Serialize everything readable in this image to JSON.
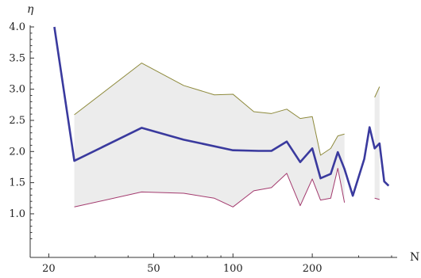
{
  "chart_data": {
    "type": "line",
    "xlabel": "N",
    "ylabel": "η",
    "x_scale": "log",
    "xlim": [
      17,
      420
    ],
    "ylim": [
      0.3,
      4.0
    ],
    "x_ticks": [
      20,
      50,
      100,
      200
    ],
    "x_tick_labels": [
      "20",
      "50",
      "100",
      "200"
    ],
    "y_ticks": [
      1.0,
      1.5,
      2.0,
      2.5,
      3.0,
      3.5,
      4.0
    ],
    "y_tick_labels": [
      "1.0",
      "1.5",
      "2.0",
      "2.5",
      "3.0",
      "3.5",
      "4.0"
    ],
    "grid": false,
    "legend": "none",
    "colors": {
      "mean": "#3a3a9e",
      "upper": "#8e8a3c",
      "lower": "#a33a6e",
      "band": "#ececec"
    },
    "series": [
      {
        "role": "mean",
        "x": [
          21,
          25,
          45,
          65,
          100,
          125,
          140,
          160,
          180,
          200,
          215,
          235,
          250,
          265,
          285,
          315,
          330,
          345,
          360,
          375,
          390
        ],
        "values": [
          4.0,
          1.85,
          2.38,
          2.19,
          2.02,
          2.01,
          2.01,
          2.16,
          1.83,
          2.05,
          1.57,
          1.64,
          1.99,
          1.72,
          1.29,
          1.88,
          2.39,
          2.05,
          2.13,
          1.52,
          1.45
        ]
      },
      {
        "role": "upper",
        "x": [
          25,
          45,
          65,
          85,
          100,
          120,
          140,
          160,
          180,
          200,
          215,
          235,
          250,
          265
        ],
        "values": [
          2.59,
          3.42,
          3.06,
          2.91,
          2.92,
          2.64,
          2.61,
          2.68,
          2.53,
          2.56,
          1.94,
          2.05,
          2.25,
          2.28
        ]
      },
      {
        "role": "lower",
        "x": [
          25,
          45,
          65,
          85,
          100,
          120,
          140,
          160,
          180,
          200,
          215,
          235,
          250,
          265
        ],
        "values": [
          1.11,
          1.35,
          1.33,
          1.25,
          1.11,
          1.37,
          1.42,
          1.65,
          1.13,
          1.56,
          1.22,
          1.25,
          1.73,
          1.18
        ]
      },
      {
        "role": "upper",
        "x": [
          345,
          360
        ],
        "values": [
          2.87,
          3.04
        ]
      },
      {
        "role": "lower",
        "x": [
          345,
          360
        ],
        "values": [
          1.25,
          1.23
        ]
      }
    ]
  }
}
